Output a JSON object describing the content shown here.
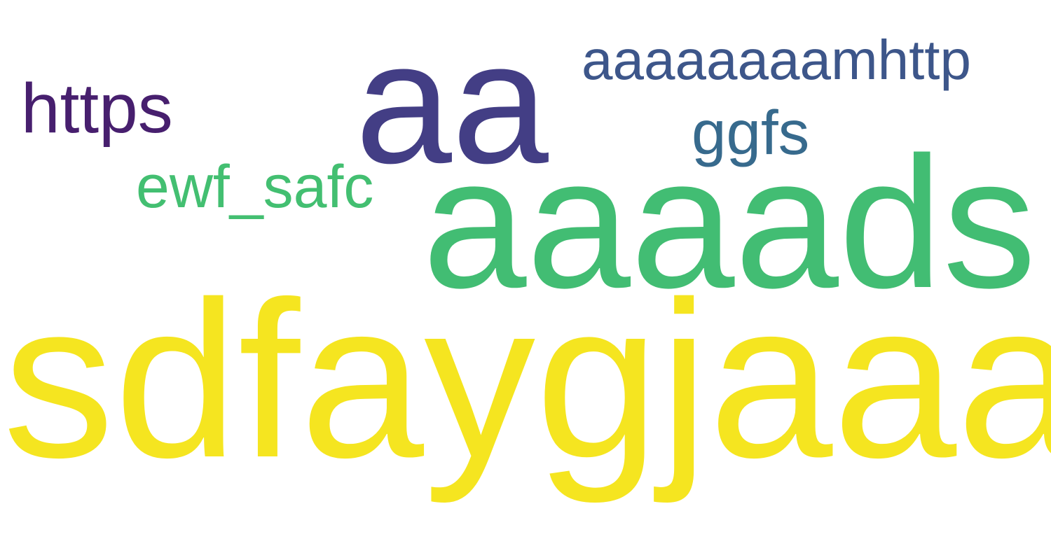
{
  "words": {
    "sdfaygjaaa": {
      "text": "sdfaygjaaa",
      "color": "#f5e520"
    },
    "aa": {
      "text": "aa",
      "color": "#433e85"
    },
    "aaaads": {
      "text": "aaaads",
      "color": "#42bd73"
    },
    "aaaaaaaamhttp": {
      "text": "aaaaaaaamhttp",
      "color": "#3d568a"
    },
    "https": {
      "text": "https",
      "color": "#471f6e"
    },
    "ggfs": {
      "text": "ggfs",
      "color": "#376a8d"
    },
    "ewf_safc": {
      "text": "ewf_safc",
      "color": "#43bf71"
    }
  }
}
